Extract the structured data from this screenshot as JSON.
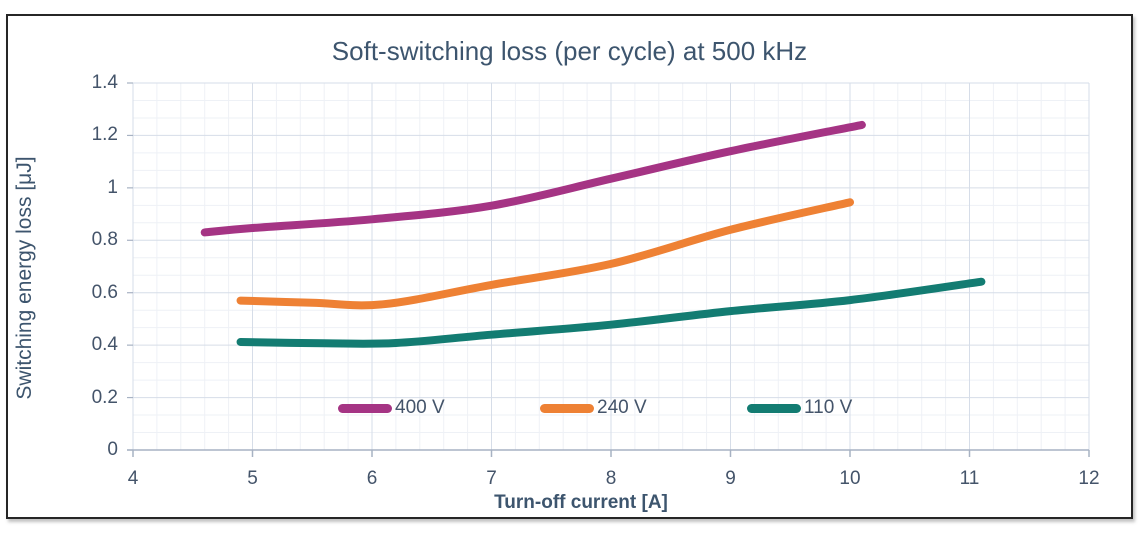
{
  "figure": {
    "title": "Soft-switching loss (per cycle) at 500 kHz"
  },
  "chart_data": {
    "type": "line",
    "title": "Soft-switching loss (per cycle) at 500 kHz",
    "xlabel": "Turn-off current [A]",
    "ylabel": "Switching energy loss [μJ]",
    "xlim": [
      4,
      12
    ],
    "ylim": [
      0,
      1.4
    ],
    "x_tick_labels": [
      "4",
      "5",
      "6",
      "7",
      "8",
      "9",
      "10",
      "11",
      "12"
    ],
    "y_tick_labels": [
      "0",
      "0.2",
      "0.4",
      "0.6",
      "0.8",
      "1",
      "1.2",
      "1.4"
    ],
    "x_major_unit": 1,
    "x_minor_unit": 0.2,
    "y_major_unit": 0.2,
    "y_minor_subdivisions_per_major": 3,
    "grid": "major+minor",
    "legend_position": "inside-bottom",
    "line_style": "smooth",
    "series": [
      {
        "name": "400 V",
        "color": "#A53484",
        "points": [
          [
            4.6,
            0.83
          ],
          [
            5,
            0.847
          ],
          [
            6,
            0.88
          ],
          [
            7,
            0.932
          ],
          [
            8,
            1.035
          ],
          [
            9,
            1.14
          ],
          [
            10.1,
            1.24
          ]
        ]
      },
      {
        "name": "240 V",
        "color": "#EE8134",
        "points": [
          [
            4.9,
            0.57
          ],
          [
            5.5,
            0.562
          ],
          [
            6.1,
            0.556
          ],
          [
            7,
            0.63
          ],
          [
            8,
            0.71
          ],
          [
            9,
            0.84
          ],
          [
            10,
            0.945
          ]
        ]
      },
      {
        "name": "110 V",
        "color": "#137C72",
        "points": [
          [
            4.9,
            0.412
          ],
          [
            5.6,
            0.407
          ],
          [
            6.2,
            0.408
          ],
          [
            7,
            0.44
          ],
          [
            8,
            0.478
          ],
          [
            9,
            0.53
          ],
          [
            10,
            0.572
          ],
          [
            11.1,
            0.642
          ]
        ]
      }
    ]
  },
  "colors": {
    "text": "#44546A",
    "title_text": "#3D556E",
    "grid_major": "#D6DDE8",
    "grid_minor": "#EEF1F6",
    "axis_line": "#A7B2C3",
    "frame_border": "#262626",
    "background": "#FFFFFF"
  }
}
